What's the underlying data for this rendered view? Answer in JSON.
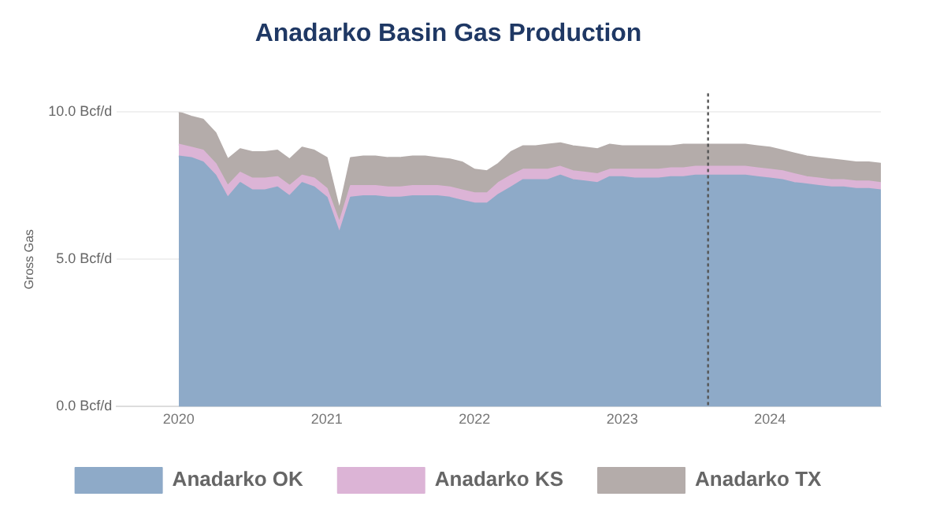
{
  "chart_data": {
    "type": "area",
    "title": "Anadarko Basin Gas Production",
    "ylabel": "Gross Gas",
    "stacked": true,
    "x": [
      "2020-01",
      "2020-02",
      "2020-03",
      "2020-04",
      "2020-05",
      "2020-06",
      "2020-07",
      "2020-08",
      "2020-09",
      "2020-10",
      "2020-11",
      "2020-12",
      "2021-01",
      "2021-02",
      "2021-03",
      "2021-04",
      "2021-05",
      "2021-06",
      "2021-07",
      "2021-08",
      "2021-09",
      "2021-10",
      "2021-11",
      "2021-12",
      "2022-01",
      "2022-02",
      "2022-03",
      "2022-04",
      "2022-05",
      "2022-06",
      "2022-07",
      "2022-08",
      "2022-09",
      "2022-10",
      "2022-11",
      "2022-12",
      "2023-01",
      "2023-02",
      "2023-03",
      "2023-04",
      "2023-05",
      "2023-06",
      "2023-07",
      "2023-08",
      "2023-09",
      "2023-10",
      "2023-11",
      "2023-12",
      "2024-01",
      "2024-02",
      "2024-03",
      "2024-04",
      "2024-05",
      "2024-06",
      "2024-07",
      "2024-08",
      "2024-09",
      "2024-10"
    ],
    "series": [
      {
        "name": "Anadarko OK",
        "color": "#8eaac8",
        "values": [
          8.5,
          8.45,
          8.3,
          7.85,
          7.1,
          7.6,
          7.35,
          7.35,
          7.45,
          7.15,
          7.6,
          7.45,
          7.1,
          5.9,
          7.1,
          7.15,
          7.15,
          7.1,
          7.1,
          7.15,
          7.15,
          7.15,
          7.1,
          7.0,
          6.9,
          6.9,
          7.2,
          7.45,
          7.7,
          7.7,
          7.7,
          7.85,
          7.7,
          7.65,
          7.6,
          7.8,
          7.8,
          7.75,
          7.75,
          7.75,
          7.8,
          7.8,
          7.85,
          7.85,
          7.85,
          7.85,
          7.85,
          7.8,
          7.75,
          7.7,
          7.6,
          7.55,
          7.5,
          7.45,
          7.45,
          7.4,
          7.4,
          7.35
        ]
      },
      {
        "name": "Anadarko KS",
        "color": "#dcb4d6",
        "values": [
          0.4,
          0.35,
          0.4,
          0.4,
          0.4,
          0.35,
          0.4,
          0.4,
          0.35,
          0.35,
          0.25,
          0.3,
          0.3,
          0.35,
          0.4,
          0.35,
          0.35,
          0.35,
          0.35,
          0.35,
          0.35,
          0.35,
          0.35,
          0.35,
          0.35,
          0.35,
          0.4,
          0.4,
          0.35,
          0.35,
          0.35,
          0.3,
          0.3,
          0.3,
          0.3,
          0.25,
          0.25,
          0.3,
          0.3,
          0.3,
          0.3,
          0.3,
          0.3,
          0.3,
          0.3,
          0.3,
          0.3,
          0.3,
          0.3,
          0.3,
          0.3,
          0.25,
          0.25,
          0.25,
          0.25,
          0.25,
          0.25,
          0.25
        ]
      },
      {
        "name": "Anadarko TX",
        "color": "#b4acaa",
        "values": [
          1.1,
          1.05,
          1.05,
          1.05,
          0.9,
          0.8,
          0.9,
          0.9,
          0.9,
          0.9,
          0.95,
          0.95,
          1.05,
          0.45,
          0.95,
          1.0,
          1.0,
          1.0,
          1.0,
          1.0,
          1.0,
          0.95,
          0.95,
          0.95,
          0.8,
          0.75,
          0.65,
          0.8,
          0.8,
          0.8,
          0.85,
          0.8,
          0.85,
          0.85,
          0.85,
          0.85,
          0.8,
          0.8,
          0.8,
          0.8,
          0.75,
          0.8,
          0.75,
          0.75,
          0.75,
          0.75,
          0.75,
          0.75,
          0.75,
          0.7,
          0.7,
          0.7,
          0.7,
          0.7,
          0.65,
          0.65,
          0.65,
          0.65
        ]
      }
    ],
    "xlim": [
      "2019-08",
      "2024-10"
    ],
    "xticks": [
      "2020",
      "2021",
      "2022",
      "2023",
      "2024"
    ],
    "ylim": [
      0,
      10
    ],
    "yticks": [
      {
        "value": 0,
        "label": "0.0 Bcf/d"
      },
      {
        "value": 5,
        "label": "5.0 Bcf/d"
      },
      {
        "value": 10,
        "label": "10.0 Bcf/d"
      }
    ],
    "grid": "y",
    "legend": "bottom",
    "ref_lines": [
      {
        "axis": "x",
        "value": "2023-08",
        "color": "#555555",
        "line_style": "dotted"
      }
    ]
  }
}
